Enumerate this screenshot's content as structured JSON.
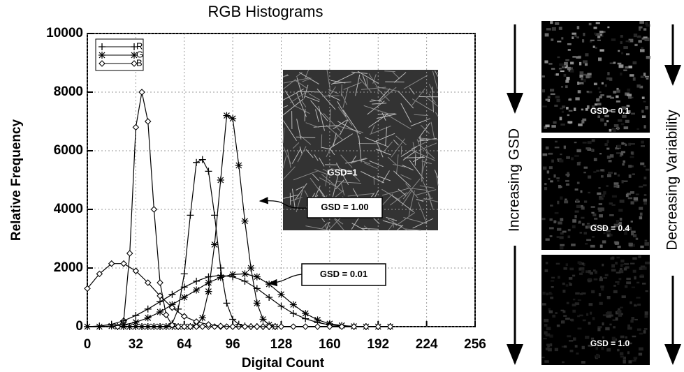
{
  "chart_data": {
    "type": "line",
    "title": "RGB Histograms",
    "x_label": "Digital Count",
    "y_label": "Relative Frequency",
    "xlim": [
      0,
      256
    ],
    "xticks": [
      0,
      32,
      64,
      96,
      128,
      160,
      192,
      224,
      256
    ],
    "ylim": [
      0,
      10000
    ],
    "yticks": [
      0,
      2000,
      4000,
      6000,
      8000,
      10000
    ],
    "grid": true,
    "legend": "upper left",
    "inset_label": "GSD=1",
    "groups": [
      {
        "label": "GSD = 1.00",
        "x": [
          20,
          24,
          28,
          32,
          36,
          40,
          44,
          48,
          52,
          56,
          60,
          64,
          68,
          72,
          76,
          80,
          84,
          88,
          92,
          96,
          100,
          104,
          108,
          112,
          116,
          120,
          124
        ],
        "series": [
          {
            "name": "R",
            "marker": "plus",
            "color": "#000",
            "values": [
              0,
              0,
              0,
              0,
              0,
              0,
              0,
              0,
              0,
              100,
              600,
              1800,
              3800,
              5600,
              5700,
              5300,
              3800,
              2000,
              800,
              250,
              80,
              20,
              0,
              0,
              0,
              0,
              0
            ]
          },
          {
            "name": "G",
            "marker": "star",
            "color": "#000",
            "values": [
              0,
              0,
              0,
              0,
              0,
              0,
              0,
              0,
              0,
              0,
              0,
              0,
              0,
              50,
              300,
              1200,
              2800,
              5000,
              7200,
              7100,
              5500,
              3600,
              2000,
              800,
              250,
              60,
              0
            ]
          },
          {
            "name": "B",
            "marker": "diamond",
            "color": "#000",
            "values": [
              0,
              200,
              2500,
              6800,
              8000,
              7000,
              4000,
              1500,
              400,
              50,
              0,
              0,
              0,
              0,
              0,
              0,
              0,
              0,
              0,
              0,
              0,
              0,
              0,
              0,
              0,
              0,
              0
            ]
          }
        ]
      },
      {
        "label": "GSD = 0.01",
        "x": [
          0,
          8,
          16,
          24,
          32,
          40,
          48,
          56,
          64,
          72,
          80,
          88,
          96,
          104,
          112,
          120,
          128,
          136,
          144,
          152,
          160,
          168,
          176,
          184,
          192,
          200
        ],
        "series": [
          {
            "name": "R",
            "marker": "plus",
            "color": "#000",
            "values": [
              0,
              20,
              80,
              200,
              380,
              600,
              850,
              1100,
              1350,
              1550,
              1700,
              1750,
              1700,
              1550,
              1300,
              1000,
              700,
              450,
              270,
              140,
              60,
              25,
              10,
              0,
              0,
              0
            ]
          },
          {
            "name": "G",
            "marker": "star",
            "color": "#000",
            "values": [
              0,
              0,
              20,
              60,
              150,
              300,
              500,
              750,
              1000,
              1250,
              1500,
              1680,
              1780,
              1800,
              1700,
              1450,
              1100,
              750,
              450,
              230,
              100,
              40,
              10,
              0,
              0,
              0
            ]
          },
          {
            "name": "B",
            "marker": "diamond",
            "color": "#000",
            "values": [
              1300,
              1800,
              2150,
              2150,
              1900,
              1500,
              1050,
              650,
              350,
              170,
              70,
              20,
              0,
              0,
              0,
              0,
              0,
              0,
              0,
              0,
              0,
              0,
              0,
              0,
              0,
              0
            ]
          }
        ]
      }
    ]
  },
  "panel": {
    "left_label": "Increasing GSD",
    "right_label": "Decreasing Variability",
    "images": [
      {
        "label": "GSD = 0.1"
      },
      {
        "label": "GSD = 0.4"
      },
      {
        "label": "GSD = 1.0"
      }
    ]
  }
}
